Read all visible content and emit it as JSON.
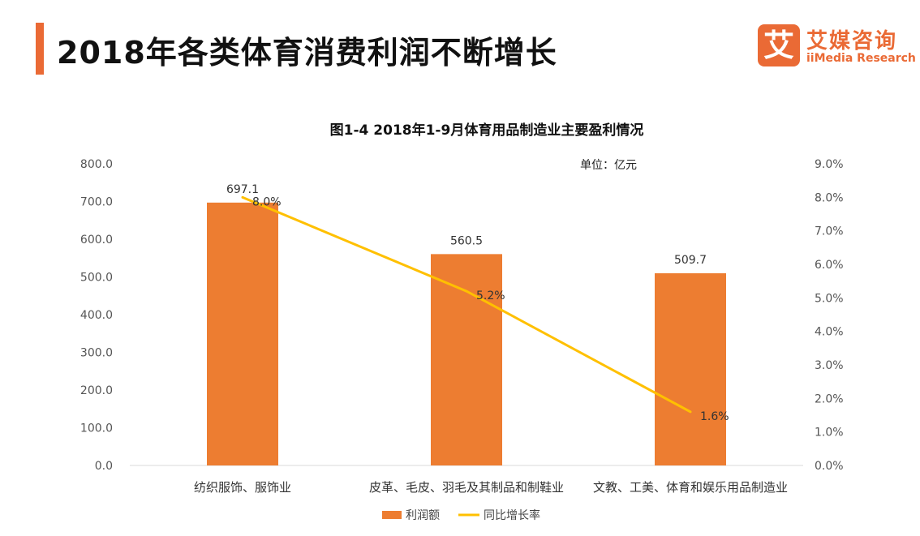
{
  "header": {
    "title": "2018年各类体育消费利润不断增长",
    "logo_mark": "艾",
    "logo_cn": "艾媒咨询",
    "logo_en": "iiMedia Research"
  },
  "colors": {
    "accent": "#ea6a35",
    "bar": "#ed7d31",
    "line": "#ffc000"
  },
  "chart_data": {
    "type": "bar",
    "title": "图1-4 2018年1-9月体育用品制造业主要盈利情况",
    "unit": "单位：亿元",
    "categories": [
      "纺织服饰、服饰业",
      "皮革、毛皮、羽毛及其制品和制鞋业",
      "文教、工美、体育和娱乐用品制造业"
    ],
    "series": [
      {
        "name": "利润额",
        "type": "bar",
        "axis": "left",
        "values": [
          697.1,
          560.5,
          509.7
        ],
        "labels": [
          "697.1",
          "560.5",
          "509.7"
        ]
      },
      {
        "name": "同比增长率",
        "type": "line",
        "axis": "right",
        "values": [
          8.0,
          5.2,
          1.6
        ],
        "labels": [
          "8.0%",
          "5.2%",
          "1.6%"
        ]
      }
    ],
    "y_left": {
      "ylim": [
        0,
        800
      ],
      "ticks": [
        "0.0",
        "100.0",
        "200.0",
        "300.0",
        "400.0",
        "500.0",
        "600.0",
        "700.0",
        "800.0"
      ]
    },
    "y_right": {
      "ylim": [
        0,
        9
      ],
      "ticks": [
        "0.0%",
        "1.0%",
        "2.0%",
        "3.0%",
        "4.0%",
        "5.0%",
        "6.0%",
        "7.0%",
        "8.0%",
        "9.0%"
      ]
    },
    "grid": false,
    "legend": "bottom"
  }
}
